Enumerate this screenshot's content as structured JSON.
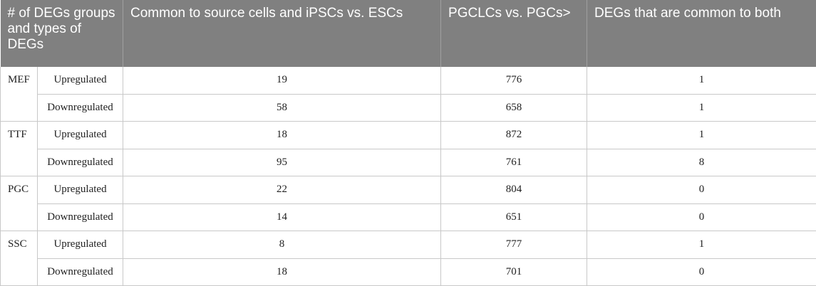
{
  "table": {
    "header": [
      "# of DEGs groups and types of DEGs",
      "Common to source cells and iPSCs vs. ESCs",
      "PGCLCs vs. PGCs>",
      "DEGs that are common to both"
    ],
    "groups": [
      {
        "name": "MEF",
        "rows": [
          [
            "Upregulated",
            "19",
            "776",
            "1"
          ],
          [
            "Downregulated",
            "58",
            "658",
            "1"
          ]
        ]
      },
      {
        "name": "TTF",
        "rows": [
          [
            "Upregulated",
            "18",
            "872",
            "1"
          ],
          [
            "Downregulated",
            "95",
            "761",
            "8"
          ]
        ]
      },
      {
        "name": "PGC",
        "rows": [
          [
            "Upregulated",
            "22",
            "804",
            "0"
          ],
          [
            "Downregulated",
            "14",
            "651",
            "0"
          ]
        ]
      },
      {
        "name": "SSC",
        "rows": [
          [
            "Upregulated",
            "8",
            "777",
            "1"
          ],
          [
            "Downregulated",
            "18",
            "701",
            "0"
          ]
        ]
      }
    ]
  }
}
